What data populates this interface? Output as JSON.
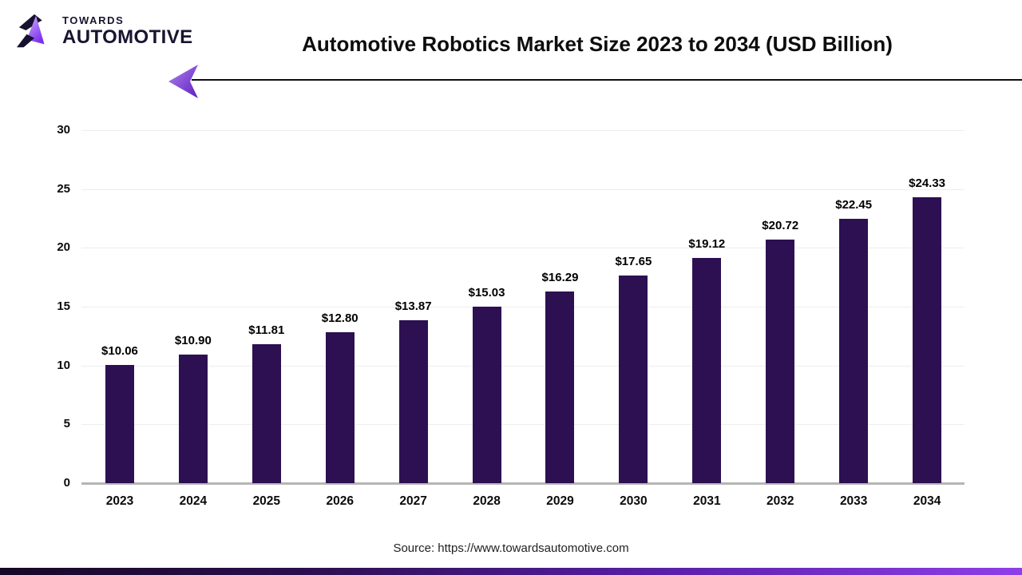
{
  "logo": {
    "line1": "TOWARDS",
    "line2": "AUTOMOTIVE"
  },
  "header": {
    "title": "Automotive Robotics Market Size 2023 to 2034 (USD Billion)"
  },
  "chart_data": {
    "type": "bar",
    "title": "Automotive Robotics Market Size 2023 to 2034 (USD Billion)",
    "unit": "USD Billion",
    "categories": [
      "2023",
      "2024",
      "2025",
      "2026",
      "2027",
      "2028",
      "2029",
      "2030",
      "2031",
      "2032",
      "2033",
      "2034"
    ],
    "values": [
      10.06,
      10.9,
      11.81,
      12.8,
      13.87,
      15.03,
      16.29,
      17.65,
      19.12,
      20.72,
      22.45,
      24.33
    ],
    "value_labels": [
      "$10.06",
      "$10.90",
      "$11.81",
      "$12.80",
      "$13.87",
      "$15.03",
      "$16.29",
      "$17.65",
      "$19.12",
      "$20.72",
      "$22.45",
      "$24.33"
    ],
    "ylim": [
      0,
      30
    ],
    "yticks": [
      0,
      5,
      10,
      15,
      20,
      25,
      30
    ],
    "grid": true,
    "legend": "none",
    "bar_color": "#2c1052"
  },
  "footer": {
    "source": "Source: https://www.towardsautomotive.com"
  },
  "colors": {
    "bar": "#2c1052",
    "gridline": "#ededed",
    "baseline": "#b5b5b5",
    "divider_line": "#0e0e12",
    "arrow_gradient_start": "#b183ef",
    "arrow_gradient_end": "#5d1fc0",
    "footer_gradient_start": "#170826",
    "footer_gradient_end": "#8f3fe9"
  }
}
